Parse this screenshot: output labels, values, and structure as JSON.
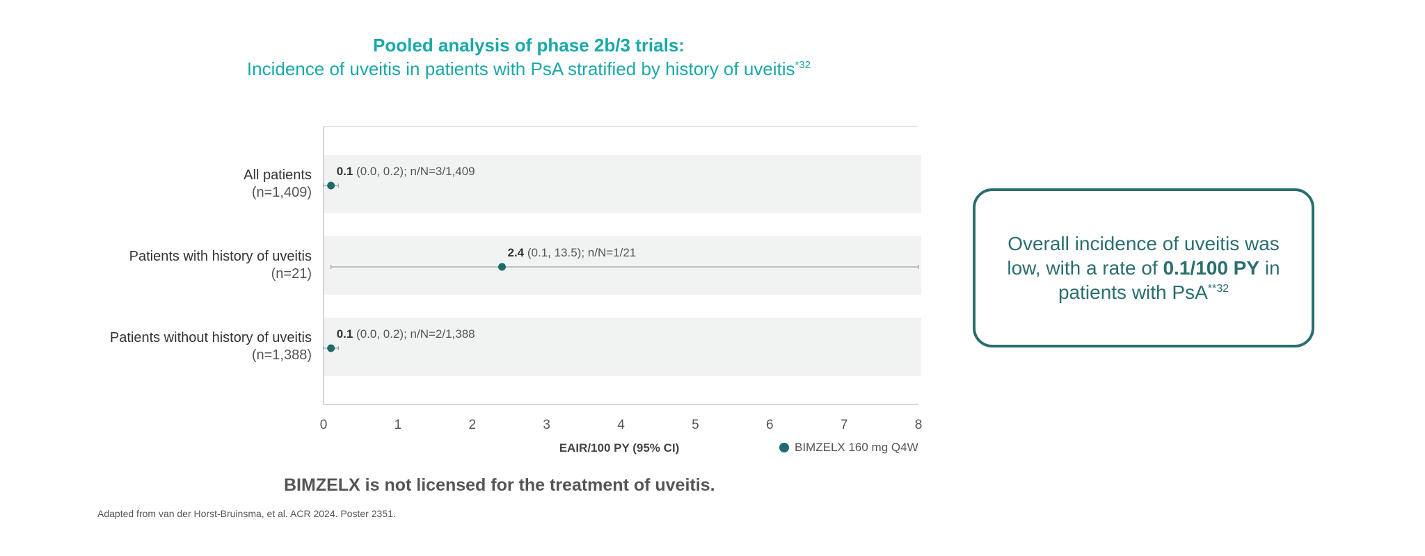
{
  "title": {
    "main": "Pooled analysis of phase 2b/3 trials:",
    "sub": "Incidence of uveitis in patients with PsA stratified by history of uveitis",
    "sub_sup": "*32"
  },
  "colors": {
    "title": "#1aa8a8",
    "marker": "#1e6b6b",
    "band": "#f1f3f2",
    "callout": "#2a6e6e",
    "axis": "#c8c8c8"
  },
  "chart_data": {
    "type": "forest",
    "xlabel": "EAIR/100 PY (95% CI)",
    "xlim": [
      0,
      8
    ],
    "xticks": [
      "0",
      "1",
      "2",
      "3",
      "4",
      "5",
      "6",
      "7",
      "8"
    ],
    "legend": "BIMZELX 160 mg Q4W",
    "rows": [
      {
        "label": "All patients",
        "n": "(n=1,409)",
        "estimate": 0.1,
        "ci_low": 0.0,
        "ci_high": 0.2,
        "value_text": "0.1",
        "detail_text": "(0.0, 0.2); n/N=3/1,409"
      },
      {
        "label": "Patients with history of uveitis",
        "n": "(n=21)",
        "estimate": 2.4,
        "ci_low": 0.1,
        "ci_high": 13.5,
        "value_text": "2.4",
        "detail_text": "(0.1, 13.5); n/N=1/21"
      },
      {
        "label": "Patients without history of uveitis",
        "n": "(n=1,388)",
        "estimate": 0.1,
        "ci_low": 0.0,
        "ci_high": 0.2,
        "value_text": "0.1",
        "detail_text": "(0.0, 0.2); n/N=2/1,388"
      }
    ]
  },
  "callout": {
    "line1": "Overall incidence of uveitis was low, with a rate of",
    "highlight": "0.1/100 PY",
    "line2": "in patients with PsA",
    "sup": "**32"
  },
  "license_note": "BIMZELX is not licensed for the treatment of uveitis.",
  "footnote": "Adapted from van der Horst-Bruinsma, et al. ACR 2024. Poster 2351."
}
